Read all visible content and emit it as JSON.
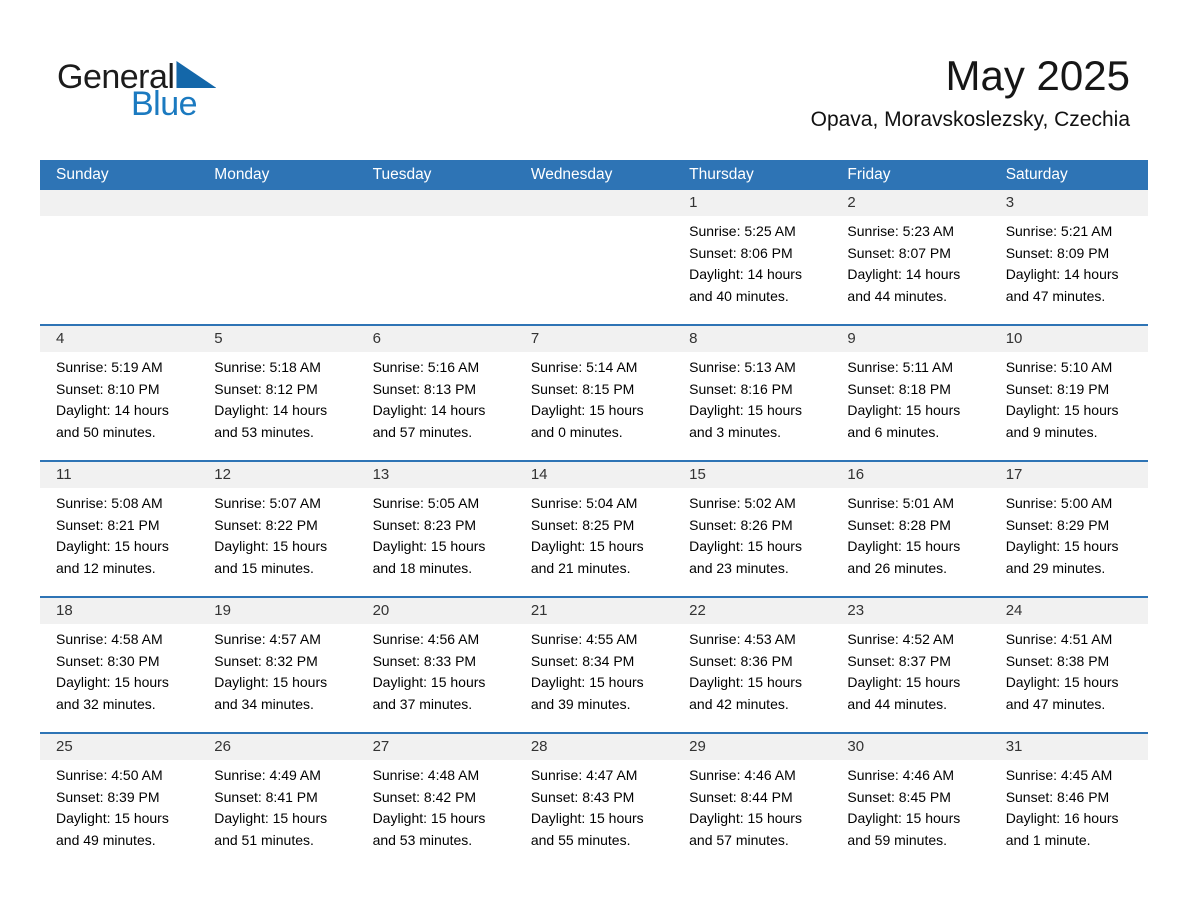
{
  "logo": {
    "general": "General",
    "blue": "Blue"
  },
  "header": {
    "title": "May 2025",
    "subtitle": "Opava, Moravskoslezsky, Czechia"
  },
  "colors": {
    "header_bg": "#2e74b5",
    "grid_line": "#2e74b5",
    "day_strip_bg": "#f1f1f1",
    "logo_text_blue": "#1b7ac0",
    "logo_triangle_blue": "#1467a9",
    "day_number_text": "#333333",
    "cell_text": "#000000",
    "weekday_text": "#ffffff"
  },
  "calendar": {
    "day_names": [
      "Sunday",
      "Monday",
      "Tuesday",
      "Wednesday",
      "Thursday",
      "Friday",
      "Saturday"
    ],
    "weeks": [
      [
        null,
        null,
        null,
        null,
        {
          "n": "1",
          "lines": [
            "Sunrise: 5:25 AM",
            "Sunset: 8:06 PM",
            "Daylight: 14 hours",
            "and 40 minutes."
          ]
        },
        {
          "n": "2",
          "lines": [
            "Sunrise: 5:23 AM",
            "Sunset: 8:07 PM",
            "Daylight: 14 hours",
            "and 44 minutes."
          ]
        },
        {
          "n": "3",
          "lines": [
            "Sunrise: 5:21 AM",
            "Sunset: 8:09 PM",
            "Daylight: 14 hours",
            "and 47 minutes."
          ]
        }
      ],
      [
        {
          "n": "4",
          "lines": [
            "Sunrise: 5:19 AM",
            "Sunset: 8:10 PM",
            "Daylight: 14 hours",
            "and 50 minutes."
          ]
        },
        {
          "n": "5",
          "lines": [
            "Sunrise: 5:18 AM",
            "Sunset: 8:12 PM",
            "Daylight: 14 hours",
            "and 53 minutes."
          ]
        },
        {
          "n": "6",
          "lines": [
            "Sunrise: 5:16 AM",
            "Sunset: 8:13 PM",
            "Daylight: 14 hours",
            "and 57 minutes."
          ]
        },
        {
          "n": "7",
          "lines": [
            "Sunrise: 5:14 AM",
            "Sunset: 8:15 PM",
            "Daylight: 15 hours",
            "and 0 minutes."
          ]
        },
        {
          "n": "8",
          "lines": [
            "Sunrise: 5:13 AM",
            "Sunset: 8:16 PM",
            "Daylight: 15 hours",
            "and 3 minutes."
          ]
        },
        {
          "n": "9",
          "lines": [
            "Sunrise: 5:11 AM",
            "Sunset: 8:18 PM",
            "Daylight: 15 hours",
            "and 6 minutes."
          ]
        },
        {
          "n": "10",
          "lines": [
            "Sunrise: 5:10 AM",
            "Sunset: 8:19 PM",
            "Daylight: 15 hours",
            "and 9 minutes."
          ]
        }
      ],
      [
        {
          "n": "11",
          "lines": [
            "Sunrise: 5:08 AM",
            "Sunset: 8:21 PM",
            "Daylight: 15 hours",
            "and 12 minutes."
          ]
        },
        {
          "n": "12",
          "lines": [
            "Sunrise: 5:07 AM",
            "Sunset: 8:22 PM",
            "Daylight: 15 hours",
            "and 15 minutes."
          ]
        },
        {
          "n": "13",
          "lines": [
            "Sunrise: 5:05 AM",
            "Sunset: 8:23 PM",
            "Daylight: 15 hours",
            "and 18 minutes."
          ]
        },
        {
          "n": "14",
          "lines": [
            "Sunrise: 5:04 AM",
            "Sunset: 8:25 PM",
            "Daylight: 15 hours",
            "and 21 minutes."
          ]
        },
        {
          "n": "15",
          "lines": [
            "Sunrise: 5:02 AM",
            "Sunset: 8:26 PM",
            "Daylight: 15 hours",
            "and 23 minutes."
          ]
        },
        {
          "n": "16",
          "lines": [
            "Sunrise: 5:01 AM",
            "Sunset: 8:28 PM",
            "Daylight: 15 hours",
            "and 26 minutes."
          ]
        },
        {
          "n": "17",
          "lines": [
            "Sunrise: 5:00 AM",
            "Sunset: 8:29 PM",
            "Daylight: 15 hours",
            "and 29 minutes."
          ]
        }
      ],
      [
        {
          "n": "18",
          "lines": [
            "Sunrise: 4:58 AM",
            "Sunset: 8:30 PM",
            "Daylight: 15 hours",
            "and 32 minutes."
          ]
        },
        {
          "n": "19",
          "lines": [
            "Sunrise: 4:57 AM",
            "Sunset: 8:32 PM",
            "Daylight: 15 hours",
            "and 34 minutes."
          ]
        },
        {
          "n": "20",
          "lines": [
            "Sunrise: 4:56 AM",
            "Sunset: 8:33 PM",
            "Daylight: 15 hours",
            "and 37 minutes."
          ]
        },
        {
          "n": "21",
          "lines": [
            "Sunrise: 4:55 AM",
            "Sunset: 8:34 PM",
            "Daylight: 15 hours",
            "and 39 minutes."
          ]
        },
        {
          "n": "22",
          "lines": [
            "Sunrise: 4:53 AM",
            "Sunset: 8:36 PM",
            "Daylight: 15 hours",
            "and 42 minutes."
          ]
        },
        {
          "n": "23",
          "lines": [
            "Sunrise: 4:52 AM",
            "Sunset: 8:37 PM",
            "Daylight: 15 hours",
            "and 44 minutes."
          ]
        },
        {
          "n": "24",
          "lines": [
            "Sunrise: 4:51 AM",
            "Sunset: 8:38 PM",
            "Daylight: 15 hours",
            "and 47 minutes."
          ]
        }
      ],
      [
        {
          "n": "25",
          "lines": [
            "Sunrise: 4:50 AM",
            "Sunset: 8:39 PM",
            "Daylight: 15 hours",
            "and 49 minutes."
          ]
        },
        {
          "n": "26",
          "lines": [
            "Sunrise: 4:49 AM",
            "Sunset: 8:41 PM",
            "Daylight: 15 hours",
            "and 51 minutes."
          ]
        },
        {
          "n": "27",
          "lines": [
            "Sunrise: 4:48 AM",
            "Sunset: 8:42 PM",
            "Daylight: 15 hours",
            "and 53 minutes."
          ]
        },
        {
          "n": "28",
          "lines": [
            "Sunrise: 4:47 AM",
            "Sunset: 8:43 PM",
            "Daylight: 15 hours",
            "and 55 minutes."
          ]
        },
        {
          "n": "29",
          "lines": [
            "Sunrise: 4:46 AM",
            "Sunset: 8:44 PM",
            "Daylight: 15 hours",
            "and 57 minutes."
          ]
        },
        {
          "n": "30",
          "lines": [
            "Sunrise: 4:46 AM",
            "Sunset: 8:45 PM",
            "Daylight: 15 hours",
            "and 59 minutes."
          ]
        },
        {
          "n": "31",
          "lines": [
            "Sunrise: 4:45 AM",
            "Sunset: 8:46 PM",
            "Daylight: 16 hours",
            "and 1 minute."
          ]
        }
      ]
    ]
  }
}
